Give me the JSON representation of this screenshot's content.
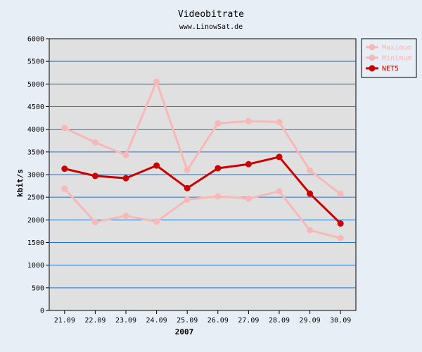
{
  "chart_data": {
    "type": "line",
    "title": "Videobitrate",
    "subtitle": "www.LinowSat.de",
    "xlabel": "2007",
    "ylabel": "kbit/s",
    "categories": [
      "21.09",
      "22.09",
      "23.09",
      "24.09",
      "25.09",
      "26.09",
      "27.09",
      "28.09",
      "29.09",
      "30.09"
    ],
    "ylim": [
      0,
      6000
    ],
    "yticks": [
      0,
      500,
      1000,
      1500,
      2000,
      2500,
      3000,
      3500,
      4000,
      4500,
      5000,
      5500,
      6000
    ],
    "grid": true,
    "legend_position": "top-right-outside",
    "series": [
      {
        "name": "Maximum",
        "color": "#f8b8b8",
        "values": [
          4030,
          3710,
          3430,
          5050,
          3100,
          4130,
          4180,
          4160,
          3090,
          2570
        ]
      },
      {
        "name": "Minimum",
        "color": "#f8b8b8",
        "values": [
          2690,
          1950,
          2090,
          1960,
          2450,
          2520,
          2470,
          2630,
          1770,
          1600
        ]
      },
      {
        "name": "NET5",
        "color": "#cc0000",
        "values": [
          3130,
          2970,
          2920,
          3200,
          2700,
          3140,
          3230,
          3390,
          2580,
          1920
        ]
      }
    ]
  }
}
